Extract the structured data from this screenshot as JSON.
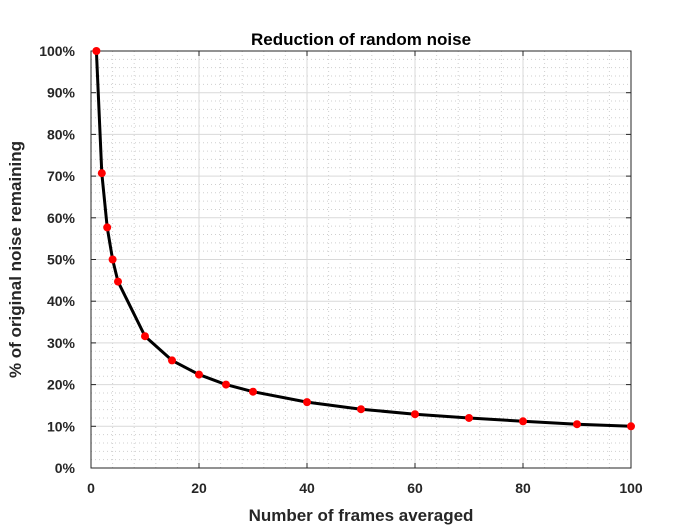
{
  "chart_data": {
    "type": "line",
    "title": "Reduction of random noise",
    "xlabel": "Number of frames averaged",
    "ylabel": "% of original noise remaining",
    "xlim": [
      0,
      100
    ],
    "ylim": [
      0,
      100
    ],
    "x_ticks": [
      0,
      20,
      40,
      60,
      80,
      100
    ],
    "x_tick_labels": [
      "0",
      "20",
      "40",
      "60",
      "80",
      "100"
    ],
    "y_ticks": [
      0,
      10,
      20,
      30,
      40,
      50,
      60,
      70,
      80,
      90,
      100
    ],
    "y_tick_labels": [
      "0%",
      "10%",
      "20%",
      "30%",
      "40%",
      "50%",
      "60%",
      "70%",
      "80%",
      "90%",
      "100%"
    ],
    "grid": true,
    "minor_grid": true,
    "series": [
      {
        "x": [
          1,
          2,
          3,
          4,
          5,
          10,
          15,
          20,
          25,
          30,
          40,
          50,
          60,
          70,
          80,
          90,
          100
        ],
        "y": [
          100,
          70.7,
          57.7,
          50,
          44.7,
          31.6,
          25.8,
          22.4,
          20,
          18.3,
          15.8,
          14.1,
          12.9,
          12,
          11.2,
          10.5,
          10
        ],
        "line_color": "#000000",
        "marker_color": "#ff0000"
      }
    ]
  }
}
